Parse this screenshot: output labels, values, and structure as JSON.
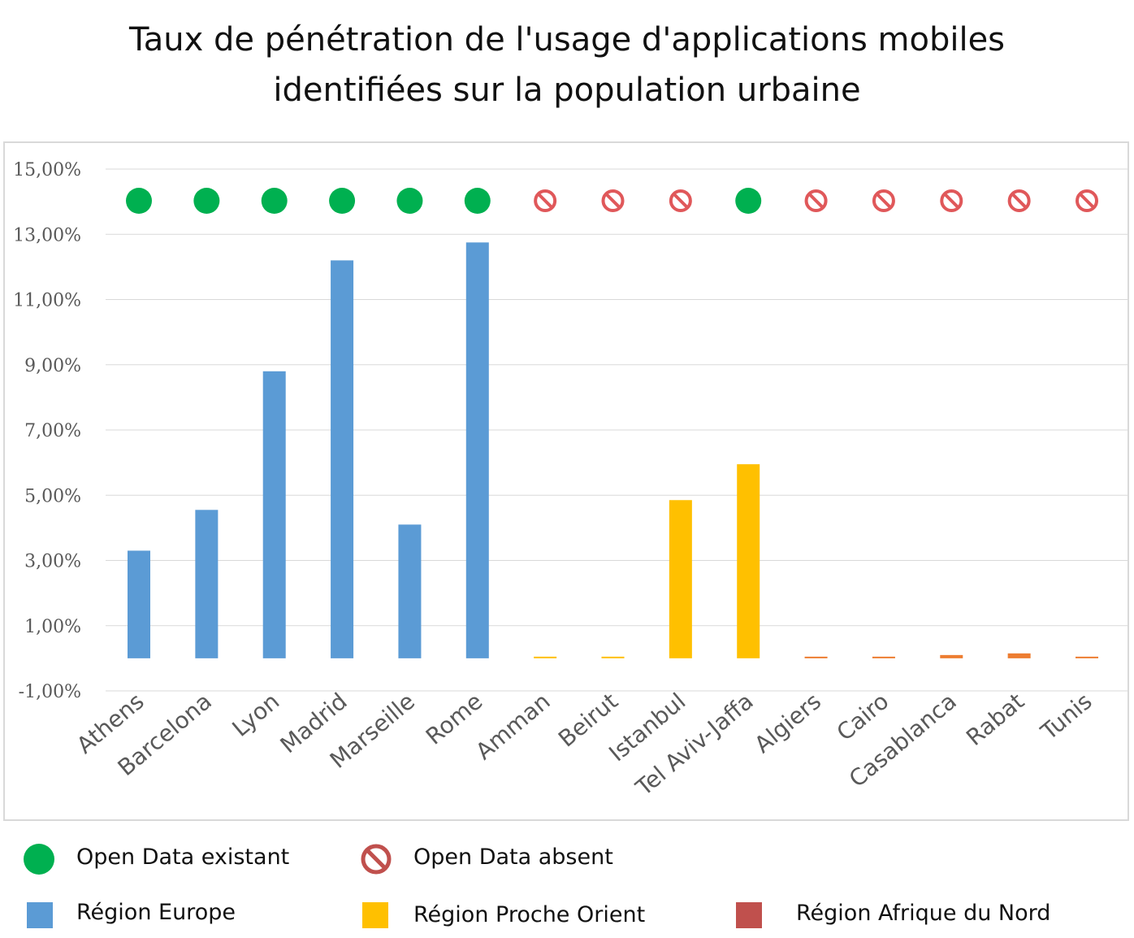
{
  "chart_data": {
    "type": "bar",
    "title": "Taux de pénétration de l'usage d'applications mobiles identifiées sur la population urbaine",
    "title_lines": [
      "Taux de pénétration de l'usage d'applications mobiles",
      "identifiées sur la population urbaine"
    ],
    "categories": [
      "Athens",
      "Barcelona",
      "Lyon",
      "Madrid",
      "Marseille",
      "Rome",
      "Amman",
      "Beirut",
      "Istanbul",
      "Tel Aviv-Jaffa",
      "Algiers",
      "Cairo",
      "Casablanca",
      "Rabat",
      "Tunis"
    ],
    "values": [
      3.3,
      4.55,
      8.8,
      12.2,
      4.1,
      12.75,
      0.0,
      0.0,
      4.85,
      5.95,
      0.0,
      0.03,
      0.1,
      0.15,
      0.0
    ],
    "regions": [
      "europe",
      "europe",
      "europe",
      "europe",
      "europe",
      "europe",
      "proche_orient",
      "proche_orient",
      "proche_orient",
      "proche_orient",
      "afrique_nord",
      "afrique_nord",
      "afrique_nord",
      "afrique_nord",
      "afrique_nord"
    ],
    "open_data": [
      true,
      true,
      true,
      true,
      true,
      true,
      false,
      false,
      false,
      true,
      false,
      false,
      false,
      false,
      false
    ],
    "ylim": [
      -1,
      15
    ],
    "yticks": [
      "15,00%",
      "13,00%",
      "11,00%",
      "9,00%",
      "7,00%",
      "5,00%",
      "3,00%",
      "1,00%",
      "-1,00%"
    ],
    "ytick_values": [
      15,
      13,
      11,
      9,
      7,
      5,
      3,
      1,
      -1
    ],
    "xlabel": "",
    "ylabel": "",
    "grid": true,
    "legend_position": "bottom"
  },
  "legend": {
    "open_data_exists": "Open Data existant",
    "open_data_absent": "Open Data absent",
    "europe": "Région Europe",
    "proche_orient": "Région Proche Orient",
    "afrique_nord": "Région Afrique du Nord"
  },
  "colors": {
    "europe": "#5b9bd5",
    "proche_orient": "#ffc000",
    "afrique_nord": "#ed7d31",
    "afrique_nord_legend": "#c0504d",
    "open_data_yes": "#00b050",
    "open_data_no": "#e0585a",
    "grid": "#d9d9d9",
    "axis_text": "#595959"
  },
  "icons": {
    "open_data_exists": "green-dot-icon",
    "open_data_absent": "no-entry-icon"
  }
}
